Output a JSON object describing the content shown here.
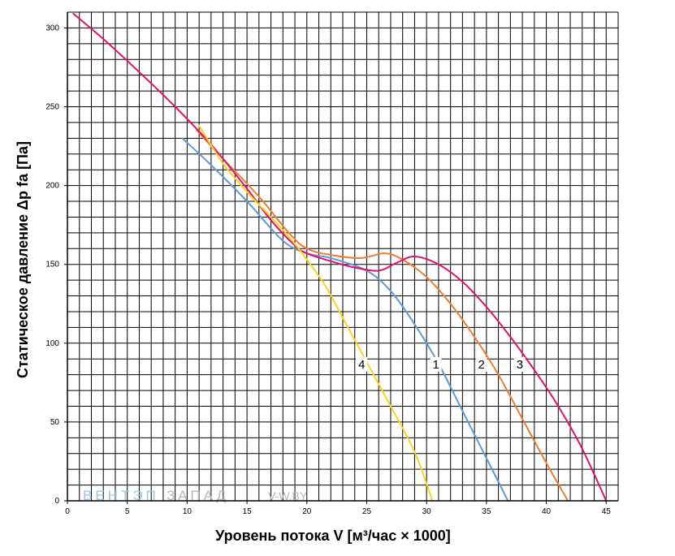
{
  "chart_data": {
    "type": "line",
    "title": "",
    "xlabel": "Уровень потока V [м³/час × 1000]",
    "ylabel": "Статическое давление Δp fa [Па]",
    "xlim": [
      0,
      46
    ],
    "ylim": [
      0,
      310
    ],
    "x_ticks": [
      0,
      5,
      10,
      15,
      20,
      25,
      30,
      35,
      40,
      45
    ],
    "y_ticks": [
      0,
      50,
      100,
      150,
      200,
      250,
      300
    ],
    "grid": true,
    "legend": "none",
    "series": [
      {
        "name": "1",
        "color": "#5b9bd5",
        "label_at": [
          30.5,
          84
        ],
        "points": [
          [
            9.6,
            230
          ],
          [
            12,
            213
          ],
          [
            15,
            190
          ],
          [
            18,
            165
          ],
          [
            20,
            157
          ],
          [
            22,
            154
          ],
          [
            25,
            146
          ],
          [
            27,
            133
          ],
          [
            29,
            112
          ],
          [
            31,
            87
          ],
          [
            33,
            57
          ],
          [
            35,
            27
          ],
          [
            36.8,
            0
          ]
        ]
      },
      {
        "name": "2",
        "color": "#ed7d31",
        "label_at": [
          34.3,
          84
        ],
        "points": [
          [
            10.8,
            235
          ],
          [
            13,
            217
          ],
          [
            16,
            193
          ],
          [
            18.5,
            170
          ],
          [
            20,
            160
          ],
          [
            22,
            156
          ],
          [
            24.5,
            154
          ],
          [
            26.5,
            157
          ],
          [
            28,
            153
          ],
          [
            30,
            142
          ],
          [
            32,
            125
          ],
          [
            34,
            104
          ],
          [
            36,
            80
          ],
          [
            38,
            52
          ],
          [
            40,
            24
          ],
          [
            41.8,
            0
          ]
        ]
      },
      {
        "name": "3",
        "color": "#e0116f",
        "label_at": [
          37.5,
          84
        ],
        "points": [
          [
            0.5,
            309
          ],
          [
            3,
            293
          ],
          [
            6,
            272
          ],
          [
            9,
            250
          ],
          [
            12,
            226
          ],
          [
            15,
            198
          ],
          [
            17,
            178
          ],
          [
            19,
            162
          ],
          [
            20,
            157
          ],
          [
            22,
            152
          ],
          [
            24,
            148
          ],
          [
            26,
            146
          ],
          [
            27.5,
            151
          ],
          [
            29,
            155
          ],
          [
            31,
            150
          ],
          [
            33,
            139
          ],
          [
            35,
            123
          ],
          [
            37,
            104
          ],
          [
            39,
            83
          ],
          [
            41,
            60
          ],
          [
            43,
            33
          ],
          [
            45,
            0
          ]
        ]
      },
      {
        "name": "4",
        "color": "#ffd21f",
        "label_at": [
          24.3,
          84
        ],
        "points": [
          [
            11,
            238
          ],
          [
            13,
            214
          ],
          [
            15,
            196
          ],
          [
            17,
            180
          ],
          [
            19,
            163
          ],
          [
            20,
            153
          ],
          [
            21.5,
            137
          ],
          [
            23,
            116
          ],
          [
            25,
            88
          ],
          [
            27,
            60
          ],
          [
            29,
            31
          ],
          [
            30.5,
            0
          ]
        ]
      }
    ]
  },
  "watermark": {
    "brand_part1": "ВЕНТЭП",
    "brand_part2": "ЗАПАД",
    "site": "V-W.BY"
  }
}
